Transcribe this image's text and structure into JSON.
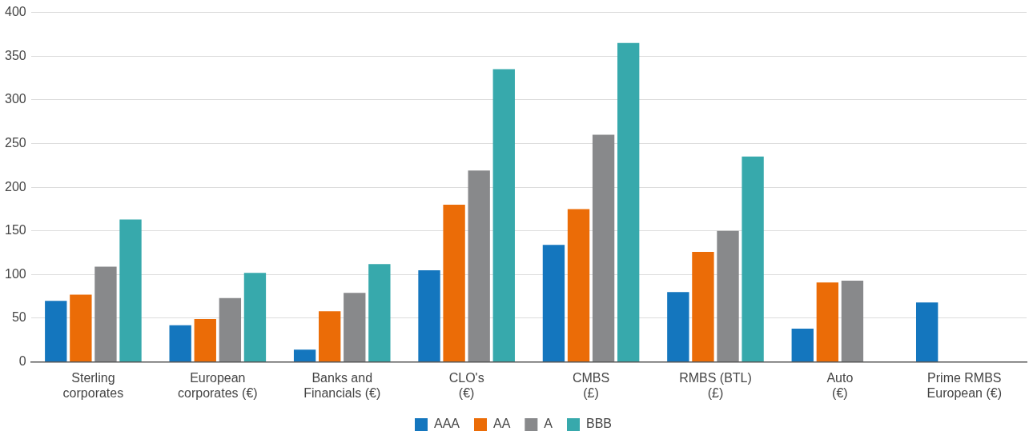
{
  "chart_data": {
    "type": "bar",
    "categories": [
      "Sterling\ncorporates",
      "European\ncorporates (€)",
      "Banks and\nFinancials (€)",
      "CLO's\n(€)",
      "CMBS\n(£)",
      "RMBS (BTL)\n(£)",
      "Auto\n(€)",
      "Prime RMBS\nEuropean (€)"
    ],
    "series": [
      {
        "name": "AAA",
        "color": "#1476be",
        "values": [
          70,
          42,
          14,
          105,
          134,
          80,
          38,
          68
        ]
      },
      {
        "name": "AA",
        "color": "#eb6c07",
        "values": [
          77,
          49,
          58,
          180,
          175,
          126,
          91,
          null
        ]
      },
      {
        "name": "A",
        "color": "#88898b",
        "values": [
          109,
          73,
          79,
          219,
          260,
          150,
          93,
          null
        ]
      },
      {
        "name": "BBB",
        "color": "#37a9ac",
        "values": [
          163,
          102,
          112,
          335,
          365,
          235,
          null,
          null
        ]
      }
    ],
    "ylim": [
      0,
      400
    ],
    "yticks": [
      0,
      50,
      100,
      150,
      200,
      250,
      300,
      350,
      400
    ],
    "grid": "y",
    "legend": "bottom"
  }
}
